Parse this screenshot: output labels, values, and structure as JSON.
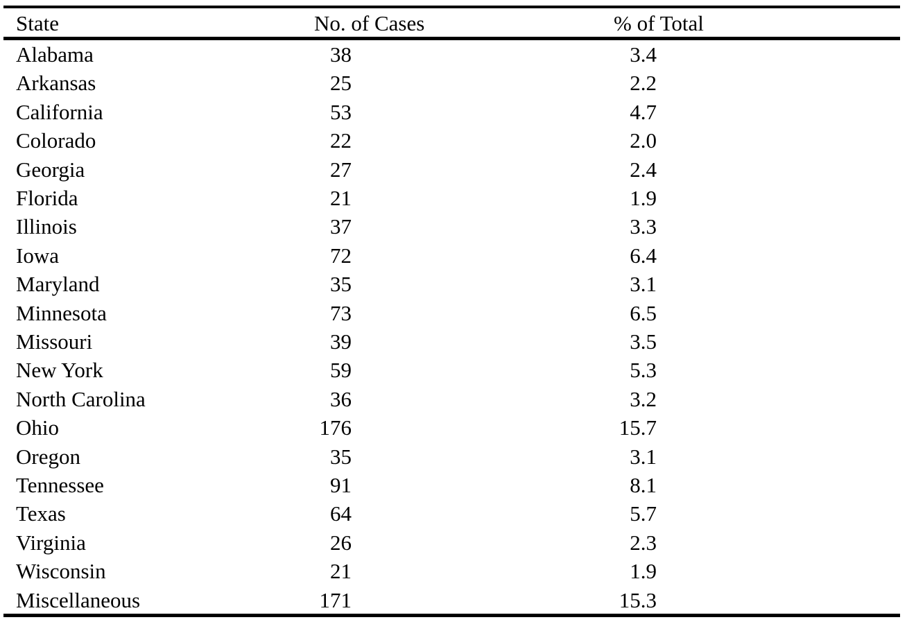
{
  "table": {
    "headers": {
      "state": "State",
      "cases": "No. of Cases",
      "pct": "% of Total"
    },
    "rows": [
      {
        "state": "Alabama",
        "cases": "38",
        "pct": "3.4"
      },
      {
        "state": "Arkansas",
        "cases": "25",
        "pct": "2.2"
      },
      {
        "state": "California",
        "cases": "53",
        "pct": "4.7"
      },
      {
        "state": "Colorado",
        "cases": "22",
        "pct": "2.0"
      },
      {
        "state": "Georgia",
        "cases": "27",
        "pct": "2.4"
      },
      {
        "state": "Florida",
        "cases": "21",
        "pct": "1.9"
      },
      {
        "state": "Illinois",
        "cases": "37",
        "pct": "3.3"
      },
      {
        "state": "Iowa",
        "cases": "72",
        "pct": "6.4"
      },
      {
        "state": "Maryland",
        "cases": "35",
        "pct": "3.1"
      },
      {
        "state": "Minnesota",
        "cases": "73",
        "pct": "6.5"
      },
      {
        "state": "Missouri",
        "cases": "39",
        "pct": "3.5"
      },
      {
        "state": "New York",
        "cases": "59",
        "pct": "5.3"
      },
      {
        "state": "North Carolina",
        "cases": "36",
        "pct": "3.2"
      },
      {
        "state": "Ohio",
        "cases": "176",
        "pct": "15.7"
      },
      {
        "state": "Oregon",
        "cases": "35",
        "pct": "3.1"
      },
      {
        "state": "Tennessee",
        "cases": "91",
        "pct": "8.1"
      },
      {
        "state": "Texas",
        "cases": "64",
        "pct": "5.7"
      },
      {
        "state": "Virginia",
        "cases": "26",
        "pct": "2.3"
      },
      {
        "state": "Wisconsin",
        "cases": "21",
        "pct": "1.9"
      },
      {
        "state": "Miscellaneous",
        "cases": "171",
        "pct": "15.3"
      }
    ]
  }
}
